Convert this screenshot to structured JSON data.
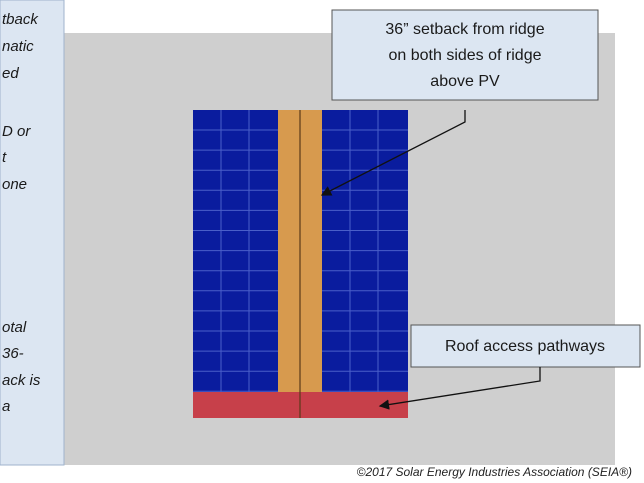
{
  "left_panel": {
    "lines": [
      "tback",
      "natic",
      "ed",
      "D or",
      "t",
      "one",
      "otal",
      "36-",
      "ack is",
      "a"
    ]
  },
  "callouts": [
    {
      "lines": [
        "36” setback from ridge",
        "on both sides of ridge",
        "above PV"
      ]
    },
    {
      "lines": [
        "Roof access pathways"
      ]
    }
  ],
  "copyright": "©2017 Solar Energy Industries Association (SEIA®)"
}
